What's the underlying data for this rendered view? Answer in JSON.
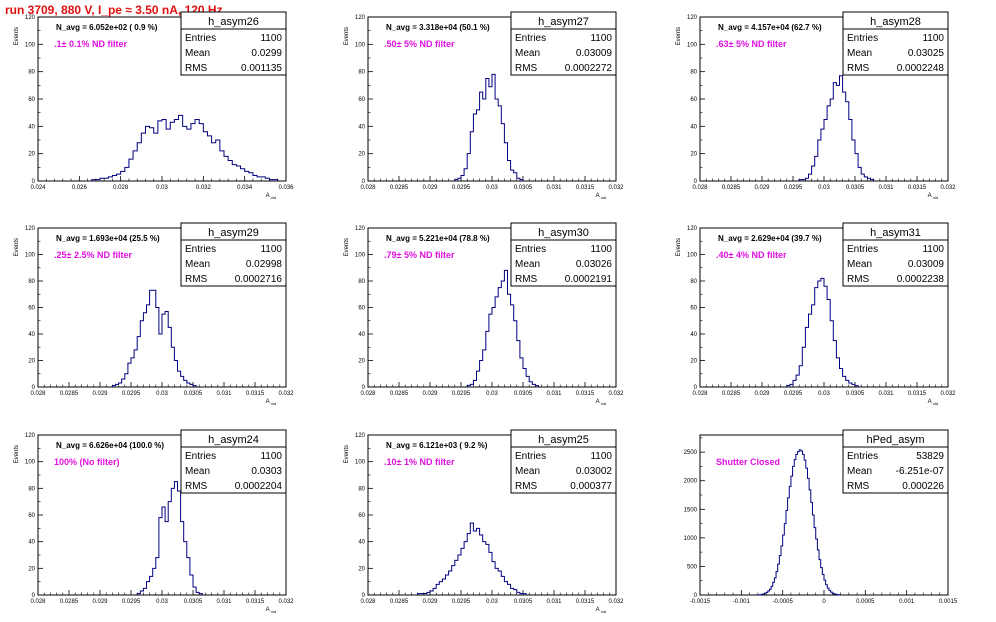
{
  "run_title": "run 3709,   880 V, I_pe ≈ 3.50 nA, 120 Hz",
  "colors": {
    "title": "#e01010",
    "annotation": "#e010e0",
    "histogram": "#000080"
  },
  "chart_data": [
    {
      "type": "histogram",
      "name": "h_asym26",
      "stats": {
        "entries": "1100",
        "mean": "0.0299",
        "rms": "0.001135"
      },
      "title": "N_avg = 6.052e+02 ( 0.9 %)",
      "annotation": ".1± 0.1% ND filter",
      "xlabel": "A_uid",
      "ylabel": "Events",
      "xlim": [
        0.024,
        0.036
      ],
      "ylim": [
        0,
        120
      ],
      "xticks": [
        "0.024",
        "0.026",
        "0.028",
        "0.03",
        "0.032",
        "0.034",
        "0.036"
      ],
      "yticks": [
        "0",
        "20",
        "40",
        "60",
        "80",
        "100",
        "120"
      ],
      "bins": {
        "start": 0.0266,
        "width": 0.0002,
        "counts": [
          1,
          1,
          2,
          2,
          3,
          4,
          5,
          7,
          10,
          16,
          22,
          28,
          35,
          40,
          39,
          35,
          44,
          45,
          38,
          43,
          45,
          48,
          40,
          38,
          42,
          45,
          42,
          36,
          33,
          28,
          30,
          22,
          18,
          15,
          12,
          11,
          9,
          7,
          6,
          4,
          3,
          3,
          2,
          1,
          1
        ]
      }
    },
    {
      "type": "histogram",
      "name": "h_asym27",
      "stats": {
        "entries": "1100",
        "mean": "0.03009",
        "rms": "0.0002272"
      },
      "title": "N_avg = 3.318e+04 (50.1 %)",
      "annotation": ".50± 5% ND filter",
      "xlabel": "A_uid",
      "ylabel": "Events",
      "xlim": [
        0.028,
        0.032
      ],
      "ylim": [
        0,
        120
      ],
      "xticks": [
        "0.028",
        "0.0285",
        "0.029",
        "0.0295",
        "0.03",
        "0.0305",
        "0.031",
        "0.0315",
        "0.032"
      ],
      "yticks": [
        "0",
        "20",
        "40",
        "60",
        "80",
        "100",
        "120"
      ],
      "bins": {
        "start": 0.0294,
        "width": 5e-05,
        "counts": [
          1,
          2,
          4,
          9,
          20,
          36,
          49,
          52,
          65,
          60,
          75,
          69,
          78,
          60,
          55,
          42,
          28,
          15,
          8,
          6,
          2,
          1
        ]
      }
    },
    {
      "type": "histogram",
      "name": "h_asym28",
      "stats": {
        "entries": "1100",
        "mean": "0.03025",
        "rms": "0.0002248"
      },
      "title": "N_avg = 4.157e+04 (62.7 %)",
      "annotation": ".63± 5% ND filter",
      "xlabel": "A_uid",
      "ylabel": "Events",
      "xlim": [
        0.028,
        0.032
      ],
      "ylim": [
        0,
        120
      ],
      "xticks": [
        "0.028",
        "0.0285",
        "0.029",
        "0.0295",
        "0.03",
        "0.0305",
        "0.031",
        "0.0315",
        "0.032"
      ],
      "yticks": [
        "0",
        "20",
        "40",
        "60",
        "80",
        "100",
        "120"
      ],
      "bins": {
        "start": 0.0296,
        "width": 5e-05,
        "counts": [
          1,
          1,
          2,
          5,
          11,
          18,
          30,
          38,
          45,
          55,
          60,
          72,
          70,
          77,
          65,
          58,
          45,
          30,
          20,
          10,
          5,
          3,
          2,
          1
        ]
      }
    },
    {
      "type": "histogram",
      "name": "h_asym29",
      "stats": {
        "entries": "1100",
        "mean": "0.02998",
        "rms": "0.0002716"
      },
      "title": "N_avg = 1.693e+04 (25.5 %)",
      "annotation": ".25± 2.5% ND filter",
      "xlabel": "A_uid",
      "ylabel": "Events",
      "xlim": [
        0.028,
        0.032
      ],
      "ylim": [
        0,
        120
      ],
      "xticks": [
        "0.028",
        "0.0285",
        "0.029",
        "0.0295",
        "0.03",
        "0.0305",
        "0.031",
        "0.0315",
        "0.032"
      ],
      "yticks": [
        "0",
        "20",
        "40",
        "60",
        "80",
        "100",
        "120"
      ],
      "bins": {
        "start": 0.0292,
        "width": 5e-05,
        "counts": [
          1,
          2,
          3,
          6,
          10,
          18,
          22,
          28,
          38,
          50,
          56,
          62,
          73,
          73,
          60,
          40,
          55,
          57,
          45,
          30,
          20,
          12,
          8,
          5,
          3,
          2,
          1
        ]
      }
    },
    {
      "type": "histogram",
      "name": "h_asym30",
      "stats": {
        "entries": "1100",
        "mean": "0.03026",
        "rms": "0.0002191"
      },
      "title": "N_avg = 5.221e+04 (78.8 %)",
      "annotation": ".79± 5% ND filter",
      "xlabel": "A_uid",
      "ylabel": "Events",
      "xlim": [
        0.028,
        0.032
      ],
      "ylim": [
        0,
        120
      ],
      "xticks": [
        "0.028",
        "0.0285",
        "0.029",
        "0.0295",
        "0.03",
        "0.0305",
        "0.031",
        "0.0315",
        "0.032"
      ],
      "yticks": [
        "0",
        "20",
        "40",
        "60",
        "80",
        "100",
        "120"
      ],
      "bins": {
        "start": 0.0296,
        "width": 5e-05,
        "counts": [
          1,
          2,
          5,
          12,
          20,
          28,
          42,
          55,
          60,
          68,
          75,
          80,
          88,
          70,
          62,
          50,
          35,
          22,
          14,
          8,
          4,
          2,
          1
        ]
      }
    },
    {
      "type": "histogram",
      "name": "h_asym31",
      "stats": {
        "entries": "1100",
        "mean": "0.03009",
        "rms": "0.0002238"
      },
      "title": "N_avg = 2.629e+04 (39.7 %)",
      "annotation": ".40± 4% ND filter",
      "xlabel": "A_uid",
      "ylabel": "Events",
      "xlim": [
        0.028,
        0.032
      ],
      "ylim": [
        0,
        120
      ],
      "xticks": [
        "0.028",
        "0.0285",
        "0.029",
        "0.0295",
        "0.03",
        "0.0305",
        "0.031",
        "0.0315",
        "0.032"
      ],
      "yticks": [
        "0",
        "20",
        "40",
        "60",
        "80",
        "100",
        "120"
      ],
      "bins": {
        "start": 0.0294,
        "width": 5e-05,
        "counts": [
          1,
          2,
          5,
          9,
          16,
          30,
          45,
          55,
          62,
          75,
          80,
          82,
          76,
          66,
          50,
          35,
          22,
          14,
          8,
          5,
          3,
          2,
          1
        ]
      }
    },
    {
      "type": "histogram",
      "name": "h_asym24",
      "stats": {
        "entries": "1100",
        "mean": "0.0303",
        "rms": "0.0002204"
      },
      "title": "N_avg = 6.626e+04 (100.0 %)",
      "annotation": "100% (No filter)",
      "xlabel": "A_uid",
      "ylabel": "Events",
      "xlim": [
        0.028,
        0.032
      ],
      "ylim": [
        0,
        120
      ],
      "xticks": [
        "0.028",
        "0.0285",
        "0.029",
        "0.0295",
        "0.03",
        "0.0305",
        "0.031",
        "0.0315",
        "0.032"
      ],
      "yticks": [
        "0",
        "20",
        "40",
        "60",
        "80",
        "100",
        "120"
      ],
      "bins": {
        "start": 0.0296,
        "width": 5e-05,
        "counts": [
          1,
          3,
          5,
          10,
          14,
          20,
          28,
          58,
          66,
          55,
          70,
          80,
          85,
          78,
          55,
          40,
          28,
          15,
          6,
          2,
          1
        ]
      }
    },
    {
      "type": "histogram",
      "name": "h_asym25",
      "stats": {
        "entries": "1100",
        "mean": "0.03002",
        "rms": "0.000377"
      },
      "title": "N_avg = 6.121e+03 ( 9.2 %)",
      "annotation": ".10± 1% ND filter",
      "xlabel": "A_uid",
      "ylabel": "Events",
      "xlim": [
        0.028,
        0.032
      ],
      "ylim": [
        0,
        120
      ],
      "xticks": [
        "0.028",
        "0.0285",
        "0.029",
        "0.0295",
        "0.03",
        "0.0305",
        "0.031",
        "0.0315",
        "0.032"
      ],
      "yticks": [
        "0",
        "20",
        "40",
        "60",
        "80",
        "100",
        "120"
      ],
      "bins": {
        "start": 0.0288,
        "width": 5e-05,
        "counts": [
          1,
          1,
          1,
          2,
          3,
          5,
          8,
          10,
          12,
          15,
          18,
          22,
          26,
          30,
          35,
          40,
          46,
          54,
          48,
          50,
          45,
          40,
          38,
          32,
          25,
          20,
          18,
          14,
          10,
          8,
          5,
          4,
          2,
          1,
          1
        ]
      }
    },
    {
      "type": "histogram",
      "name": "hPed_asym",
      "stats": {
        "entries": "53829",
        "mean": "-6.251e-07",
        "rms": "0.000226"
      },
      "title": "",
      "annotation": "Shutter Closed",
      "xlabel": "",
      "ylabel": "",
      "xlim": [
        -0.0015,
        0.0015
      ],
      "ylim": [
        0,
        2800
      ],
      "xticks": [
        "-0.0015",
        "-0.001",
        "-0.0005",
        "0",
        "0.0005",
        "0.001",
        "0.0015"
      ],
      "yticks": [
        "0",
        "500",
        "1000",
        "1500",
        "2000",
        "2500"
      ],
      "bins": {
        "start": -0.0008,
        "width": 2e-05,
        "counts": [
          3,
          5,
          10,
          18,
          30,
          45,
          70,
          100,
          150,
          220,
          300,
          410,
          540,
          690,
          860,
          1050,
          1250,
          1480,
          1700,
          1900,
          2080,
          2250,
          2370,
          2460,
          2510,
          2540,
          2520,
          2460,
          2360,
          2220,
          2040,
          1840,
          1620,
          1400,
          1180,
          980,
          790,
          620,
          480,
          360,
          260,
          180,
          120,
          80,
          50,
          30,
          18,
          10,
          6,
          3
        ]
      }
    }
  ]
}
